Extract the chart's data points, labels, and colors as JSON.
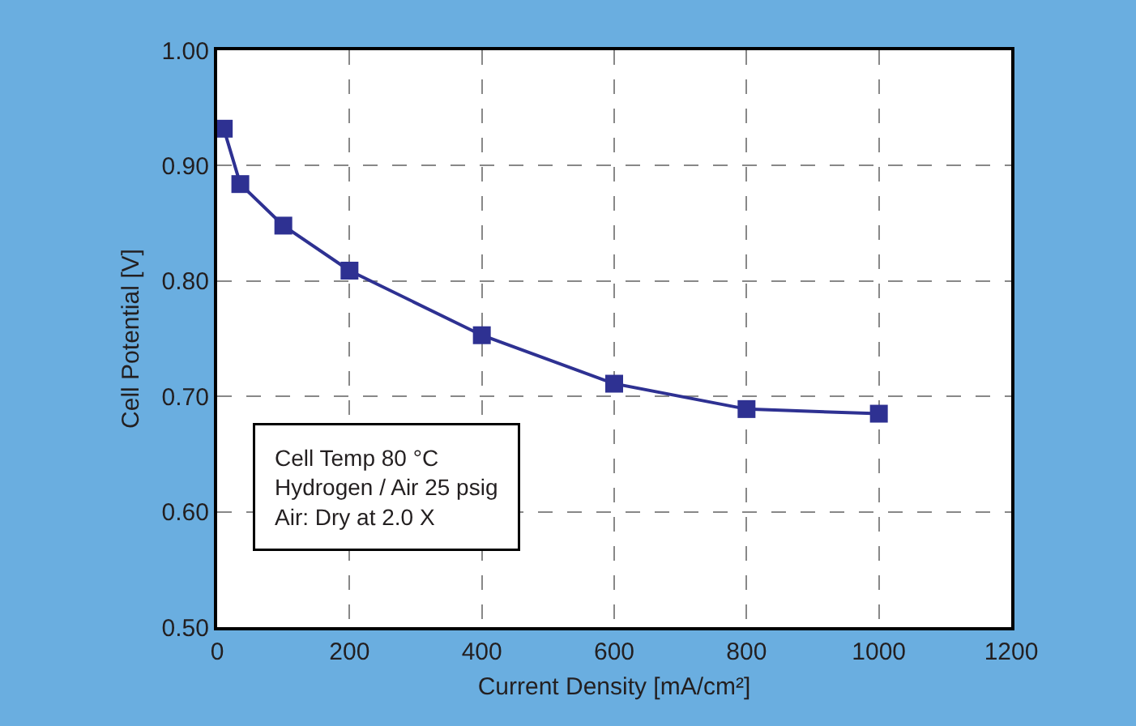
{
  "chart_data": {
    "type": "line",
    "xlabel": "Current Density [mA/cm²]",
    "ylabel": "Cell Potential [V]",
    "x": [
      10,
      35,
      100,
      200,
      400,
      600,
      800,
      1000
    ],
    "series": [
      {
        "color": "#2e3192",
        "values": [
          0.932,
          0.884,
          0.848,
          0.809,
          0.753,
          0.711,
          0.689,
          0.685
        ]
      }
    ],
    "xlim": [
      0,
      1200
    ],
    "xticks": [
      0,
      200,
      400,
      600,
      800,
      1000,
      1200
    ],
    "ylim": [
      0.5,
      1.0
    ],
    "yticks": [
      {
        "value": 0.5,
        "label": "0.50"
      },
      {
        "value": 0.6,
        "label": "0.60"
      },
      {
        "value": 0.7,
        "label": "0.70"
      },
      {
        "value": 0.8,
        "label": "0.80"
      },
      {
        "value": 0.9,
        "label": "0.90"
      },
      {
        "value": 1.0,
        "label": "1.00"
      }
    ],
    "grid": true,
    "marker": "square",
    "line_style": "solid",
    "annotations": [
      "Cell Temp 80 °C\nHydrogen / Air 25 psig\nAir: Dry at 2.0 X"
    ]
  }
}
